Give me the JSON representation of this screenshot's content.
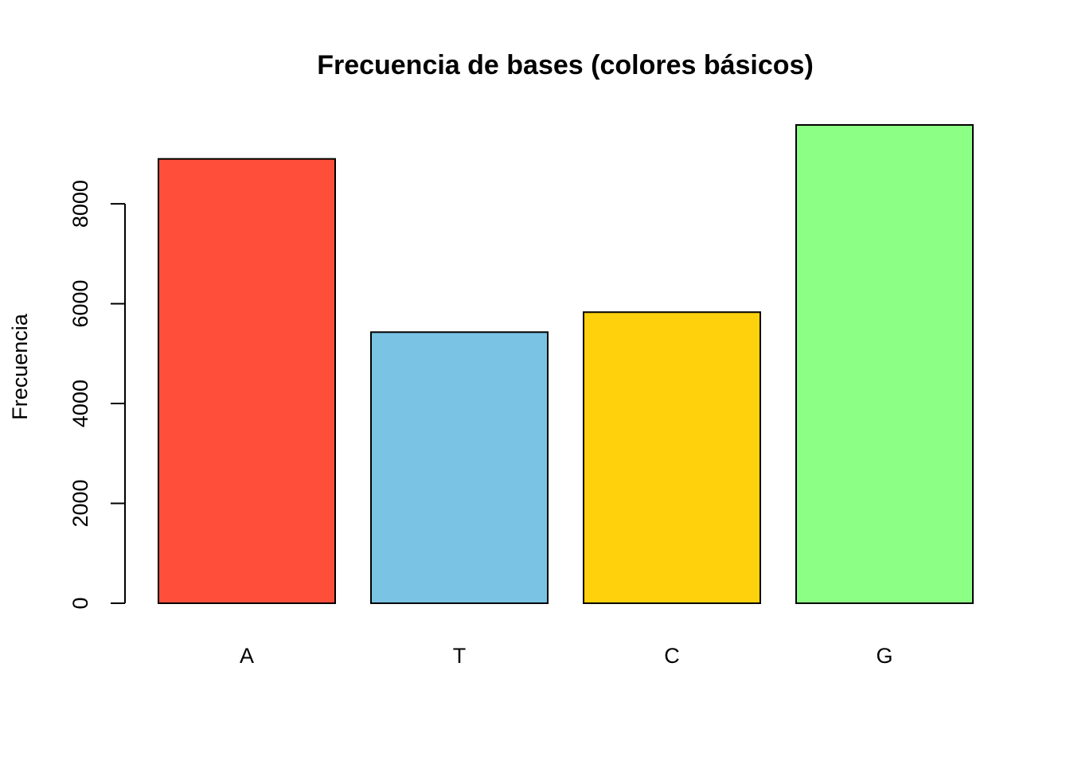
{
  "chart_data": {
    "type": "bar",
    "title": "Frecuencia de bases (colores básicos)",
    "xlabel": "",
    "ylabel": "Frecuencia",
    "categories": [
      "A",
      "T",
      "C",
      "G"
    ],
    "values": [
      8900,
      5430,
      5830,
      9580
    ],
    "colors": [
      "#FF4F3B",
      "#7AC3E5",
      "#FFD10C",
      "#8CFF85"
    ],
    "yticks": [
      0,
      2000,
      4000,
      6000,
      8000
    ],
    "ytick_labels": [
      "0",
      "2000",
      "4000",
      "6000",
      "8000"
    ],
    "ylim": [
      0,
      9580
    ],
    "grid": false,
    "legend": "none"
  }
}
